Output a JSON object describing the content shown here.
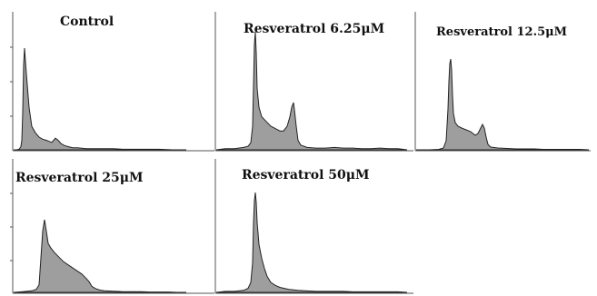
{
  "chart_data": [
    {
      "type": "area",
      "title": "Control",
      "x": [
        0,
        3,
        6,
        8,
        9,
        10,
        11,
        12,
        14,
        17,
        20,
        24,
        28,
        32,
        36,
        39,
        42,
        44,
        46,
        49,
        52,
        56,
        60,
        65,
        70,
        75,
        80,
        90,
        100,
        110,
        120,
        130,
        140,
        150,
        160,
        175,
        190
      ],
      "values": [
        0,
        0,
        0.5,
        3,
        9,
        35,
        80,
        96,
        72,
        40,
        22,
        16,
        12,
        10,
        9,
        8,
        7,
        9,
        11,
        9,
        6,
        4,
        3,
        2,
        2,
        1.5,
        1,
        1,
        1,
        1,
        0.5,
        0.5,
        0.5,
        0.5,
        0.5,
        0,
        0
      ],
      "fill": "#9e9e9e",
      "xlabel": "",
      "ylabel": ""
    },
    {
      "type": "area",
      "title": "Resveratrol 6.25μM",
      "x": [
        0,
        10,
        20,
        30,
        35,
        38,
        40,
        41,
        42,
        43,
        44,
        45,
        47,
        50,
        55,
        60,
        65,
        70,
        74,
        78,
        81,
        83,
        85,
        86,
        88,
        90,
        93,
        100,
        110,
        120,
        130,
        140,
        150,
        160,
        170,
        180,
        190,
        200,
        210
      ],
      "values": [
        0,
        1,
        1,
        2,
        3,
        6,
        20,
        55,
        90,
        100,
        82,
        52,
        36,
        28,
        24,
        20,
        18,
        16,
        16,
        20,
        28,
        36,
        40,
        34,
        20,
        8,
        4,
        2,
        1.5,
        1.5,
        2,
        1.5,
        1.5,
        1,
        1,
        1.5,
        1,
        1,
        0
      ],
      "fill": "#9e9e9e",
      "xlabel": "",
      "ylabel": ""
    },
    {
      "type": "area",
      "title": "Resveratrol 12.5μM",
      "x": [
        0,
        15,
        25,
        30,
        33,
        35,
        36,
        37,
        38,
        39,
        40,
        41,
        43,
        46,
        50,
        55,
        60,
        65,
        68,
        71,
        73,
        75,
        77,
        79,
        82,
        90,
        100,
        110,
        120,
        130,
        140,
        150,
        160,
        170,
        180,
        190
      ],
      "values": [
        0,
        0,
        0.5,
        2,
        10,
        45,
        75,
        95,
        100,
        88,
        60,
        40,
        30,
        26,
        24,
        22,
        20,
        16,
        18,
        24,
        28,
        24,
        14,
        6,
        3,
        2,
        1.5,
        1,
        1,
        1,
        0.5,
        0.5,
        0.5,
        0.5,
        0.5,
        0
      ],
      "fill": "#9e9e9e",
      "xlabel": "",
      "ylabel": ""
    },
    {
      "type": "area",
      "title": "Resveratrol 25μM",
      "x": [
        0,
        10,
        20,
        25,
        28,
        30,
        32,
        34,
        36,
        38,
        41,
        45,
        50,
        55,
        60,
        65,
        70,
        75,
        80,
        83,
        86,
        90,
        95,
        100,
        110,
        120,
        130,
        140,
        150,
        160,
        170,
        180,
        190
      ],
      "values": [
        0,
        1,
        2,
        4,
        10,
        45,
        80,
        95,
        80,
        64,
        58,
        52,
        46,
        40,
        36,
        32,
        28,
        24,
        18,
        14,
        8,
        5,
        3,
        2,
        1.5,
        1,
        1,
        1,
        0.5,
        0.5,
        0.5,
        0,
        0
      ],
      "fill": "#9e9e9e",
      "xlabel": "",
      "ylabel": ""
    },
    {
      "type": "area",
      "title": "Resveratrol 50μM",
      "x": [
        0,
        10,
        20,
        30,
        35,
        38,
        40,
        41,
        42,
        43,
        44,
        45,
        47,
        50,
        53,
        56,
        60,
        65,
        70,
        75,
        80,
        90,
        100,
        110,
        120,
        130,
        140,
        150,
        160,
        170,
        180,
        190,
        200,
        210
      ],
      "values": [
        0,
        1,
        1,
        2,
        4,
        10,
        30,
        70,
        92,
        100,
        90,
        70,
        48,
        34,
        24,
        16,
        10,
        7,
        5,
        4,
        3,
        2,
        1.5,
        1,
        1,
        1,
        1,
        0.5,
        0.5,
        0.5,
        0.5,
        0.5,
        0.5,
        0
      ],
      "fill": "#9e9e9e",
      "xlabel": "",
      "ylabel": ""
    }
  ]
}
